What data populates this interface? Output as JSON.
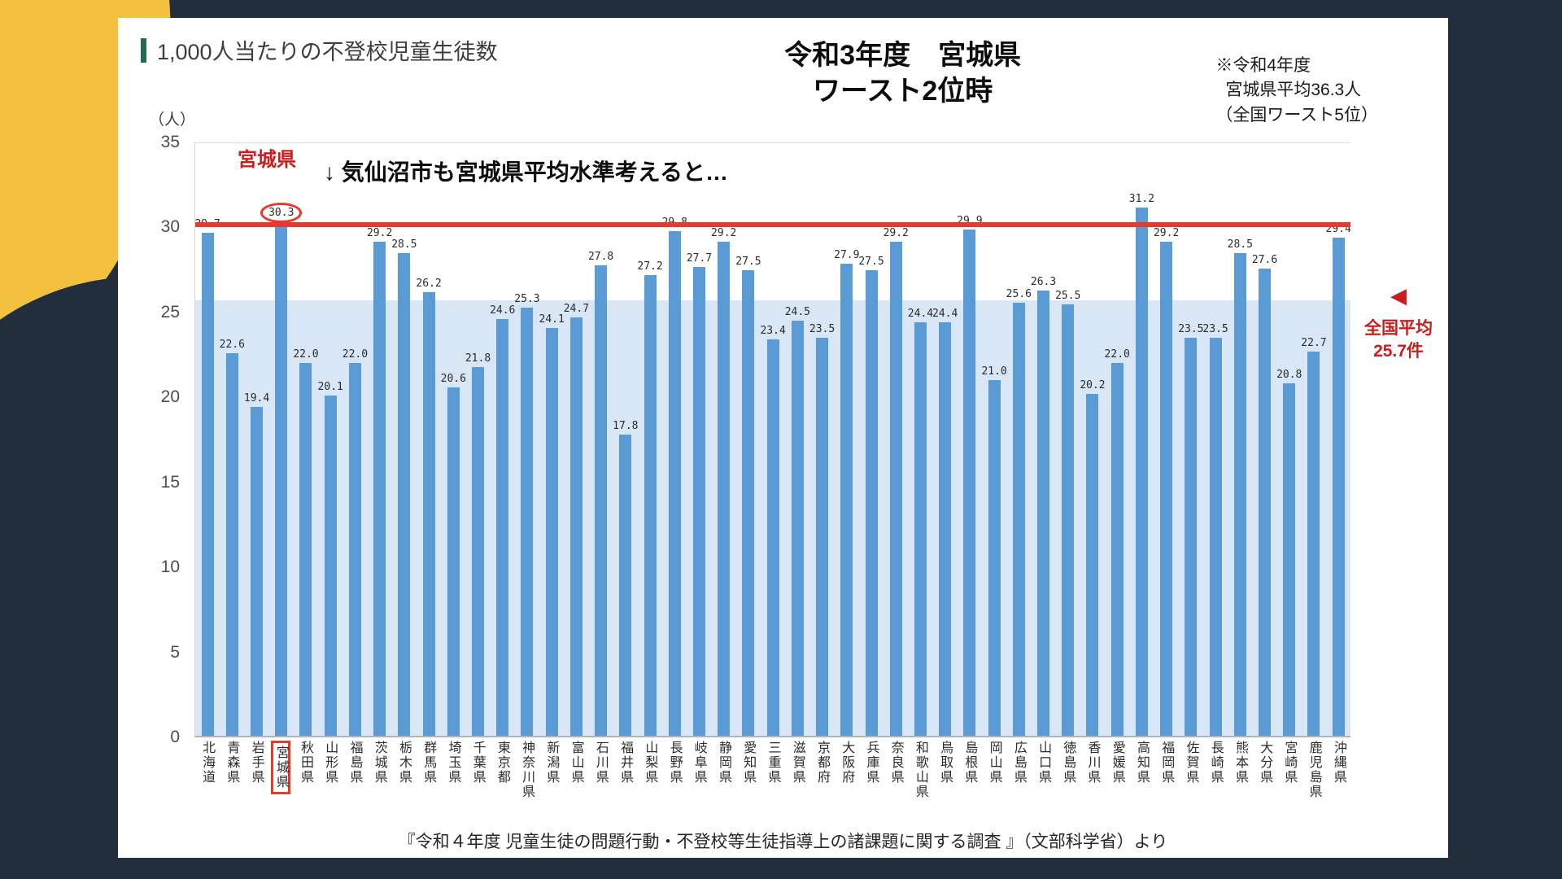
{
  "slide": {
    "title": "1,000人当たりの不登校児童生徒数",
    "headline": {
      "line1": "令和3年度　宮城県",
      "line2": "ワースト2位時"
    },
    "note": {
      "line1": "※令和4年度",
      "line2": "宮城県平均36.3人",
      "line3": "（全国ワースト5位）"
    },
    "caption": "『令和４年度 児童生徒の問題行動・不登校等生徒指導上の諸課題に関する調査 』（文部科学省）より"
  },
  "annotations": {
    "miyagi_label": "宮城県",
    "arrow_note": "↓ 気仙沼市も宮城県平均水準考えると…",
    "red_line_value": 30.2,
    "national_avg": {
      "marker": "◀",
      "label1": "全国平均",
      "label2": "25.7件",
      "value": 25.7
    }
  },
  "chart_data": {
    "type": "bar",
    "title": "1,000人当たりの不登校児童生徒数",
    "unit_label": "（人）",
    "ylim": [
      0,
      35
    ],
    "yticks": [
      0,
      5,
      10,
      15,
      20,
      25,
      30,
      35
    ],
    "grid": false,
    "national_average": 25.7,
    "highlight_category": "宮城県",
    "categories": [
      "北海道",
      "青森県",
      "岩手県",
      "宮城県",
      "秋田県",
      "山形県",
      "福島県",
      "茨城県",
      "栃木県",
      "群馬県",
      "埼玉県",
      "千葉県",
      "東京都",
      "神奈川県",
      "新潟県",
      "富山県",
      "石川県",
      "福井県",
      "山梨県",
      "長野県",
      "岐阜県",
      "静岡県",
      "愛知県",
      "三重県",
      "滋賀県",
      "京都府",
      "大阪府",
      "兵庫県",
      "奈良県",
      "和歌山県",
      "鳥取県",
      "島根県",
      "岡山県",
      "広島県",
      "山口県",
      "徳島県",
      "香川県",
      "愛媛県",
      "高知県",
      "福岡県",
      "佐賀県",
      "長崎県",
      "熊本県",
      "大分県",
      "宮崎県",
      "鹿児島県",
      "沖縄県"
    ],
    "values": [
      29.7,
      22.6,
      19.4,
      30.3,
      22.0,
      20.1,
      22.0,
      29.2,
      28.5,
      26.2,
      20.6,
      21.8,
      24.6,
      25.3,
      24.1,
      24.7,
      27.8,
      17.8,
      27.2,
      29.8,
      27.7,
      29.2,
      27.5,
      23.4,
      24.5,
      23.5,
      27.9,
      27.5,
      29.2,
      24.4,
      24.4,
      29.9,
      21.0,
      25.6,
      26.3,
      25.5,
      20.2,
      22.0,
      31.2,
      29.2,
      23.5,
      23.5,
      28.5,
      27.6,
      20.8,
      22.7,
      29.4
    ]
  },
  "colors": {
    "background": "#222e3c",
    "accent_yellow": "#f3c13d",
    "title_green": "#1f6e52",
    "bar": "#5b9bd5",
    "band": "#d9e6f5",
    "red": "#e8392f",
    "red_text": "#c81e1e"
  }
}
